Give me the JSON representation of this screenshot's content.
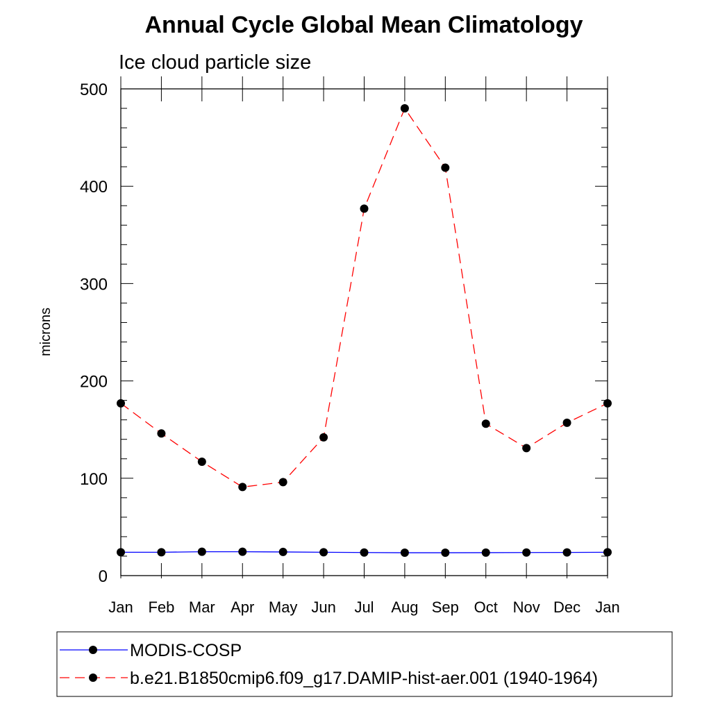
{
  "chart_data": {
    "type": "line",
    "title": "Annual Cycle Global Mean Climatology",
    "subtitle": "Ice cloud particle size",
    "ylabel": "microns",
    "xlabel": "",
    "ylim": [
      0,
      500
    ],
    "yticks": [
      0,
      100,
      200,
      300,
      400,
      500
    ],
    "categories": [
      "Jan",
      "Feb",
      "Mar",
      "Apr",
      "May",
      "Jun",
      "Jul",
      "Aug",
      "Sep",
      "Oct",
      "Nov",
      "Dec",
      "Jan"
    ],
    "grid": false,
    "legend_position": "bottom",
    "series": [
      {
        "name": "MODIS-COSP",
        "color": "#0000ff",
        "line_style": "solid",
        "marker": "filled-circle",
        "values": [
          24,
          24,
          24.5,
          24.5,
          24.3,
          24,
          23.7,
          23.5,
          23.5,
          23.6,
          23.7,
          23.8,
          24
        ]
      },
      {
        "name": "b.e21.B1850cmip6.f09_g17.DAMIP-hist-aer.001 (1940-1964)",
        "color": "#ff0000",
        "line_style": "dashed",
        "marker": "filled-circle",
        "values": [
          177,
          146,
          117,
          91,
          96,
          142,
          377,
          480,
          419,
          156,
          131,
          157,
          177
        ]
      }
    ]
  }
}
